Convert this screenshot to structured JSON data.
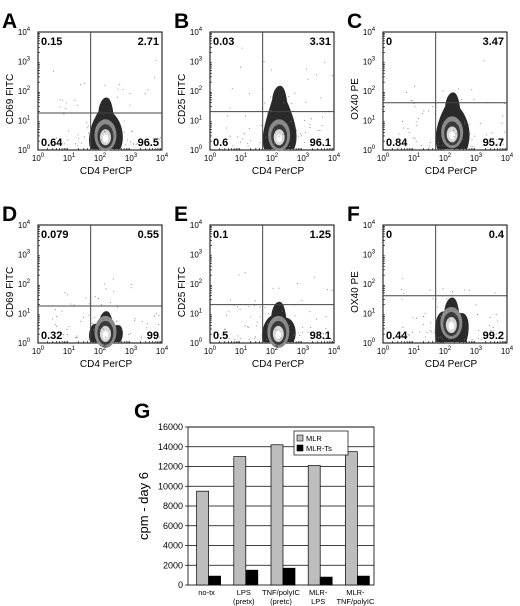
{
  "chart_data": [
    {
      "type": "scatter",
      "panel_letter": "A",
      "xlabel": "CD4 PerCP",
      "ylabel": "CD69 FITC",
      "x_ticks": [
        "10^0",
        "10^1",
        "10^2",
        "10^3",
        "10^4"
      ],
      "y_ticks": [
        "10^0",
        "10^1",
        "10^2",
        "10^3",
        "10^4"
      ],
      "xlim": [
        1,
        10000
      ],
      "ylim": [
        1,
        10000
      ],
      "scale": "log",
      "gate": {
        "x": 50,
        "y": 18
      },
      "quadrants": {
        "upper_left": "0.15",
        "upper_right": "2.71",
        "lower_left": "0.64",
        "lower_right": "96.5"
      },
      "population": {
        "x_center": 150,
        "y_center": 4,
        "y_top": 60,
        "spread": "upward tail"
      }
    },
    {
      "type": "scatter",
      "panel_letter": "B",
      "xlabel": "CD4 PerCP",
      "ylabel": "CD25 FITC",
      "x_ticks": [
        "10^0",
        "10^1",
        "10^2",
        "10^3",
        "10^4"
      ],
      "y_ticks": [
        "10^0",
        "10^1",
        "10^2",
        "10^3",
        "10^4"
      ],
      "xlim": [
        1,
        10000
      ],
      "ylim": [
        1,
        10000
      ],
      "scale": "log",
      "gate": {
        "x": 50,
        "y": 20
      },
      "quadrants": {
        "upper_left": "0.03",
        "upper_right": "3.31",
        "lower_left": "0.6",
        "lower_right": "96.1"
      },
      "population": {
        "x_center": 170,
        "y_center": 4,
        "y_top": 150,
        "spread": "upward tail"
      }
    },
    {
      "type": "scatter",
      "panel_letter": "C",
      "xlabel": "CD4 PerCP",
      "ylabel": "OX40 PE",
      "x_ticks": [
        "10^0",
        "10^1",
        "10^2",
        "10^3",
        "10^4"
      ],
      "y_ticks": [
        "10^0",
        "10^1",
        "10^2",
        "10^3",
        "10^4"
      ],
      "xlim": [
        1,
        10000
      ],
      "ylim": [
        1,
        10000
      ],
      "scale": "log",
      "gate": {
        "x": 50,
        "y": 40
      },
      "quadrants": {
        "upper_left": "0",
        "upper_right": "3.47",
        "lower_left": "0.84",
        "lower_right": "95.7"
      },
      "population": {
        "x_center": 170,
        "y_center": 5,
        "y_top": 90,
        "spread": "upward tail"
      }
    },
    {
      "type": "scatter",
      "panel_letter": "D",
      "xlabel": "CD4 PerCP",
      "ylabel": "CD69 FITC",
      "x_ticks": [
        "10^0",
        "10^1",
        "10^2",
        "10^3",
        "10^4"
      ],
      "y_ticks": [
        "10^0",
        "10^1",
        "10^2",
        "10^3",
        "10^4"
      ],
      "xlim": [
        1,
        10000
      ],
      "ylim": [
        1,
        10000
      ],
      "scale": "log",
      "gate": {
        "x": 50,
        "y": 18
      },
      "quadrants": {
        "upper_left": "0.079",
        "upper_right": "0.55",
        "lower_left": "0.32",
        "lower_right": "99"
      },
      "population": {
        "x_center": 150,
        "y_center": 3,
        "y_top": 12,
        "spread": "compact"
      }
    },
    {
      "type": "scatter",
      "panel_letter": "E",
      "xlabel": "CD4 PerCP",
      "ylabel": "CD25 FITC",
      "x_ticks": [
        "10^0",
        "10^1",
        "10^2",
        "10^3",
        "10^4"
      ],
      "y_ticks": [
        "10^0",
        "10^1",
        "10^2",
        "10^3",
        "10^4"
      ],
      "xlim": [
        1,
        10000
      ],
      "ylim": [
        1,
        10000
      ],
      "scale": "log",
      "gate": {
        "x": 50,
        "y": 20
      },
      "quadrants": {
        "upper_left": "0.1",
        "upper_right": "1.25",
        "lower_left": "0.5",
        "lower_right": "98.1"
      },
      "population": {
        "x_center": 160,
        "y_center": 3,
        "y_top": 25,
        "spread": "small tail"
      }
    },
    {
      "type": "scatter",
      "panel_letter": "F",
      "xlabel": "CD4 PerCP",
      "ylabel": "OX40 PE",
      "x_ticks": [
        "10^0",
        "10^1",
        "10^2",
        "10^3",
        "10^4"
      ],
      "y_ticks": [
        "10^0",
        "10^1",
        "10^2",
        "10^3",
        "10^4"
      ],
      "xlim": [
        1,
        10000
      ],
      "ylim": [
        1,
        10000
      ],
      "scale": "log",
      "gate": {
        "x": 50,
        "y": 40
      },
      "quadrants": {
        "upper_left": "0",
        "upper_right": "0.4",
        "lower_left": "0.44",
        "lower_right": "99.2"
      },
      "population": {
        "x_center": 160,
        "y_center": 6,
        "y_top": 35,
        "spread": "compact"
      }
    },
    {
      "type": "bar",
      "panel_letter": "G",
      "ylabel": "cpm - day 6",
      "categories": [
        [
          "no-tx"
        ],
        [
          "LPS",
          "(pretx)"
        ],
        [
          "TNF/polyIC",
          "(pretc)"
        ],
        [
          "MLR-",
          "LPS"
        ],
        [
          "MLR-",
          "TNF/polyIC"
        ]
      ],
      "series": [
        {
          "name": "MLR",
          "values": [
            9500,
            13000,
            14200,
            12100,
            13500
          ],
          "color": "#bdbdbd"
        },
        {
          "name": "MLR-Ts",
          "values": [
            900,
            1500,
            1700,
            800,
            900
          ],
          "color": "#000000"
        }
      ],
      "ylim": [
        0,
        16000
      ],
      "yticks": [
        0,
        2000,
        4000,
        6000,
        8000,
        10000,
        12000,
        14000,
        16000
      ],
      "grid": true,
      "legend_position": "top-right"
    }
  ]
}
